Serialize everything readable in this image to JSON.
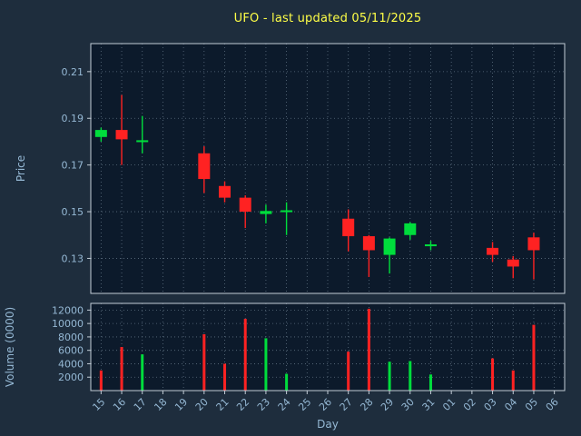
{
  "title": "UFO - last updated 05/11/2025",
  "colors": {
    "figure_bg": "#1e2d3d",
    "axes_bg": "#0c1a2b",
    "title": "#ffff47",
    "axis_label": "#95b8d4",
    "tick_label": "#95b8d4",
    "spine": "#c3cdd7",
    "grid": "#5d6f80",
    "up": "#00dd3c",
    "down": "#ff2222"
  },
  "chart_data": {
    "type": "candlestick+volume",
    "title": "UFO - last updated 05/11/2025",
    "xlabel": "Day",
    "ylabel_price": "Price",
    "ylabel_volume": "Volume (0000)",
    "legend": "none",
    "grid": "dotted",
    "x_ticks": [
      "15",
      "16",
      "17",
      "18",
      "19",
      "20",
      "21",
      "22",
      "23",
      "24",
      "25",
      "26",
      "27",
      "28",
      "29",
      "30",
      "31",
      "01",
      "02",
      "03",
      "04",
      "05",
      "06"
    ],
    "price_ticks": [
      0.13,
      0.15,
      0.17,
      0.19,
      0.21
    ],
    "price_ylim": [
      0.115,
      0.222
    ],
    "volume_ticks": [
      2000,
      4000,
      6000,
      8000,
      10000,
      12000
    ],
    "volume_ylim": [
      0,
      13000
    ],
    "candles": [
      {
        "day": "15",
        "open": 0.182,
        "high": 0.186,
        "low": 0.18,
        "close": 0.185,
        "volume": 3000,
        "dir": "up",
        "vol_dir": "down"
      },
      {
        "day": "16",
        "open": 0.185,
        "high": 0.2,
        "low": 0.17,
        "close": 0.181,
        "volume": 6500,
        "dir": "down",
        "vol_dir": "down"
      },
      {
        "day": "17",
        "open": 0.1798,
        "high": 0.191,
        "low": 0.175,
        "close": 0.1806,
        "volume": 5400,
        "dir": "up",
        "vol_dir": "up"
      },
      {
        "day": "20",
        "open": 0.175,
        "high": 0.178,
        "low": 0.158,
        "close": 0.164,
        "volume": 8400,
        "dir": "down",
        "vol_dir": "down"
      },
      {
        "day": "21",
        "open": 0.161,
        "high": 0.163,
        "low": 0.154,
        "close": 0.156,
        "volume": 4000,
        "dir": "down",
        "vol_dir": "down"
      },
      {
        "day": "22",
        "open": 0.156,
        "high": 0.157,
        "low": 0.143,
        "close": 0.15,
        "volume": 10700,
        "dir": "down",
        "vol_dir": "down"
      },
      {
        "day": "23",
        "open": 0.149,
        "high": 0.153,
        "low": 0.145,
        "close": 0.1503,
        "volume": 7800,
        "dir": "up",
        "vol_dir": "up"
      },
      {
        "day": "24",
        "open": 0.1498,
        "high": 0.154,
        "low": 0.14,
        "close": 0.1506,
        "volume": 2500,
        "dir": "up",
        "vol_dir": "up"
      },
      {
        "day": "27",
        "open": 0.147,
        "high": 0.151,
        "low": 0.133,
        "close": 0.1395,
        "volume": 5800,
        "dir": "down",
        "vol_dir": "down"
      },
      {
        "day": "28",
        "open": 0.1395,
        "high": 0.14,
        "low": 0.122,
        "close": 0.1335,
        "volume": 12200,
        "dir": "down",
        "vol_dir": "down"
      },
      {
        "day": "29",
        "open": 0.1315,
        "high": 0.139,
        "low": 0.1235,
        "close": 0.1385,
        "volume": 4300,
        "dir": "up",
        "vol_dir": "up"
      },
      {
        "day": "30",
        "open": 0.14,
        "high": 0.1455,
        "low": 0.138,
        "close": 0.145,
        "volume": 4400,
        "dir": "up",
        "vol_dir": "up"
      },
      {
        "day": "31",
        "open": 0.1352,
        "high": 0.1375,
        "low": 0.1335,
        "close": 0.136,
        "volume": 2400,
        "dir": "up",
        "vol_dir": "up"
      },
      {
        "day": "03",
        "open": 0.1345,
        "high": 0.137,
        "low": 0.1285,
        "close": 0.1315,
        "volume": 4800,
        "dir": "down",
        "vol_dir": "down"
      },
      {
        "day": "04",
        "open": 0.1295,
        "high": 0.131,
        "low": 0.1215,
        "close": 0.1265,
        "volume": 3000,
        "dir": "down",
        "vol_dir": "down"
      },
      {
        "day": "05",
        "open": 0.139,
        "high": 0.141,
        "low": 0.121,
        "close": 0.1335,
        "volume": 9800,
        "dir": "down",
        "vol_dir": "down"
      }
    ]
  }
}
